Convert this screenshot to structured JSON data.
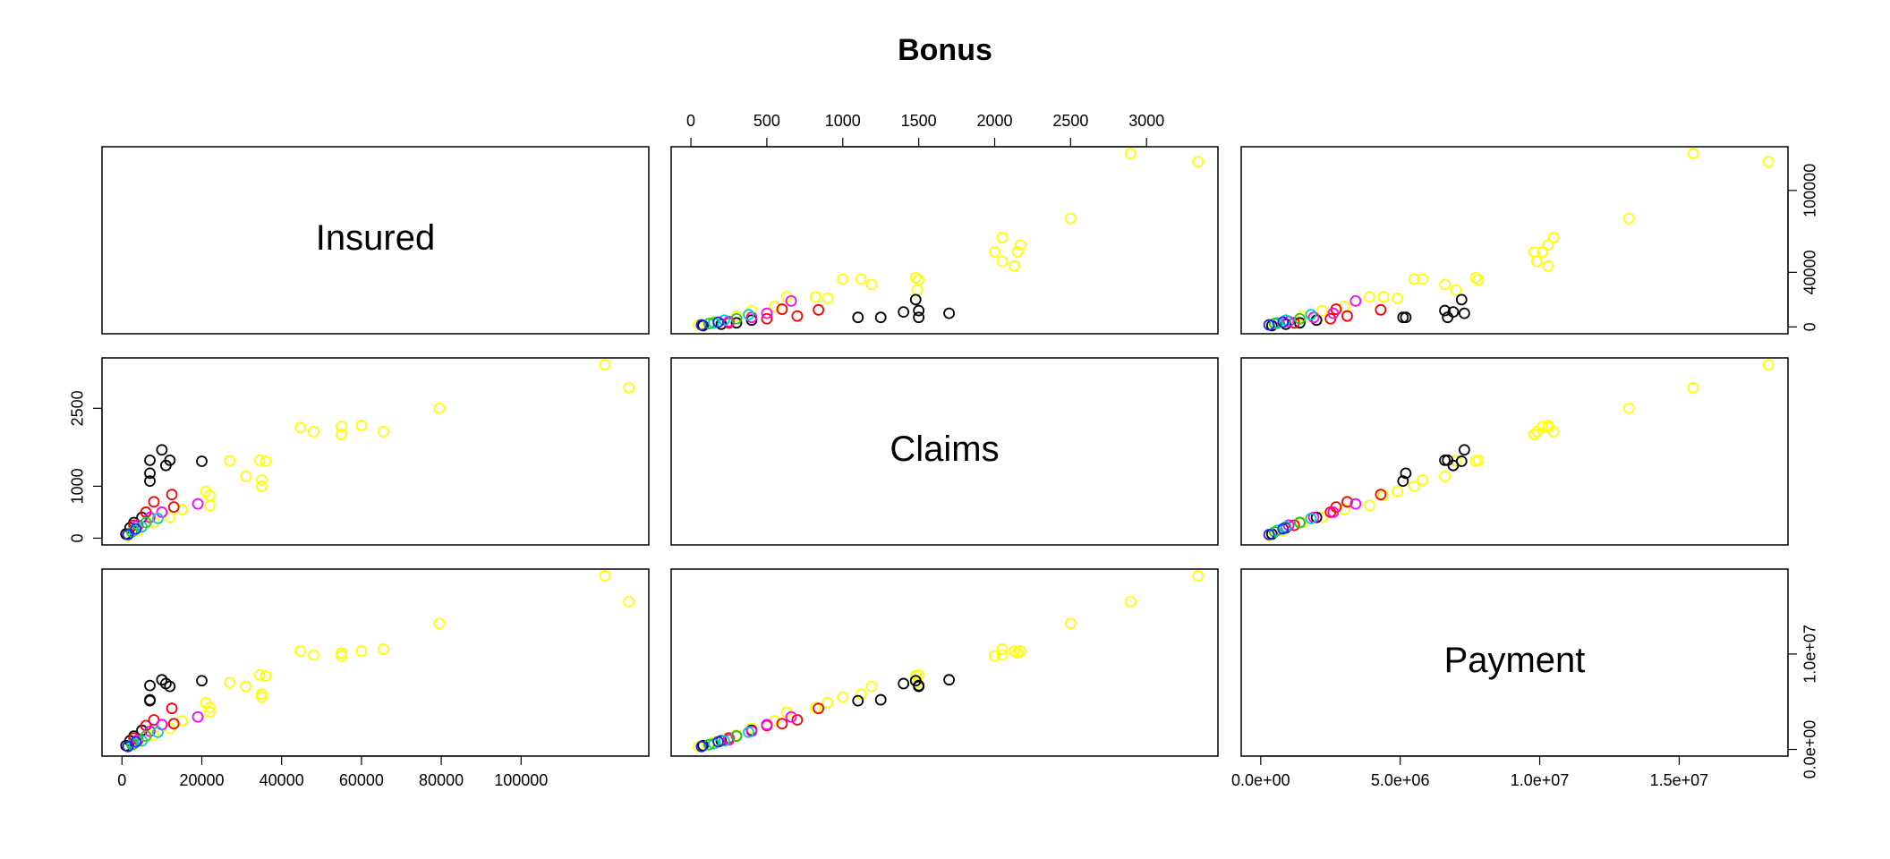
{
  "chart_data": {
    "type": "pairs",
    "title": "Bonus",
    "variables": [
      {
        "label": "Insured",
        "lim": [
          -5000,
          132000
        ],
        "xticks": [
          0,
          20000,
          40000,
          60000,
          80000,
          100000
        ],
        "yticks": [
          0,
          40000,
          100000
        ]
      },
      {
        "label": "Claims",
        "lim": [
          -130,
          3470
        ],
        "xticks": [
          0,
          500,
          1000,
          1500,
          2000,
          2500,
          3000
        ],
        "yticks": [
          0,
          1000,
          2500
        ]
      },
      {
        "label": "Payment",
        "lim": [
          -700000,
          18900000
        ],
        "xticks": [
          {
            "value": 0,
            "label": "0.0e+00"
          },
          {
            "value": 5000000,
            "label": "5.0e+06"
          },
          {
            "value": 10000000,
            "label": "1.0e+07"
          },
          {
            "value": 15000000,
            "label": "1.5e+07"
          }
        ],
        "yticks": [
          {
            "value": 0,
            "label": "0.0e+00"
          },
          {
            "value": 10000000,
            "label": "1.0e+07"
          }
        ]
      }
    ],
    "series": [
      {
        "color": "#ffff00",
        "values": [
          [
            121000,
            3338,
            18200000
          ],
          [
            127000,
            2894,
            15500000
          ],
          [
            79500,
            2500,
            13200000
          ],
          [
            65500,
            2050,
            10500000
          ],
          [
            60000,
            2170,
            10300000
          ],
          [
            55000,
            2000,
            9800000
          ],
          [
            55000,
            2150,
            10100000
          ],
          [
            48000,
            2050,
            9900000
          ],
          [
            44700,
            2130,
            10300000
          ],
          [
            36000,
            1480,
            7700000
          ],
          [
            34500,
            1500,
            7800000
          ],
          [
            35000,
            1000,
            5500000
          ],
          [
            35000,
            1120,
            5800000
          ],
          [
            31000,
            1190,
            6600000
          ],
          [
            27000,
            1490,
            7000000
          ],
          [
            22000,
            820,
            4400000
          ],
          [
            21000,
            900,
            4900000
          ],
          [
            22000,
            630,
            3900000
          ],
          [
            12000,
            400,
            2200000
          ],
          [
            8000,
            300,
            1500000
          ],
          [
            4000,
            150,
            800000
          ],
          [
            1500,
            50,
            300000
          ],
          [
            15000,
            550,
            3000000
          ]
        ]
      },
      {
        "color": "#000000",
        "values": [
          [
            10000,
            1700,
            7300000
          ],
          [
            7000,
            1500,
            6700000
          ],
          [
            12000,
            1500,
            6600000
          ],
          [
            7000,
            1250,
            5200000
          ],
          [
            11000,
            1400,
            6900000
          ],
          [
            20000,
            1480,
            7200000
          ],
          [
            7000,
            1100,
            5100000
          ],
          [
            5000,
            400,
            2000000
          ],
          [
            3000,
            300,
            1400000
          ],
          [
            1000,
            80,
            400000
          ],
          [
            2000,
            200,
            900000
          ]
        ]
      },
      {
        "color": "#ff0000",
        "values": [
          [
            12500,
            840,
            4300000
          ],
          [
            8000,
            700,
            3100000
          ],
          [
            6000,
            500,
            2500000
          ],
          [
            3000,
            250,
            1200000
          ],
          [
            13000,
            600,
            2700000
          ]
        ]
      },
      {
        "color": "#ff00ff",
        "values": [
          [
            19000,
            660,
            3400000
          ],
          [
            10000,
            500,
            2600000
          ],
          [
            4000,
            250,
            1000000
          ],
          [
            7000,
            400,
            1900000
          ]
        ]
      },
      {
        "color": "#00cccc",
        "values": [
          [
            9000,
            380,
            1800000
          ],
          [
            5000,
            220,
            900000
          ],
          [
            3000,
            150,
            600000
          ]
        ]
      },
      {
        "color": "#22cc22",
        "values": [
          [
            6000,
            300,
            1400000
          ],
          [
            2500,
            120,
            500000
          ]
        ]
      },
      {
        "color": "#2222ff",
        "values": [
          [
            3500,
            180,
            800000
          ],
          [
            1500,
            70,
            300000
          ]
        ]
      }
    ]
  }
}
